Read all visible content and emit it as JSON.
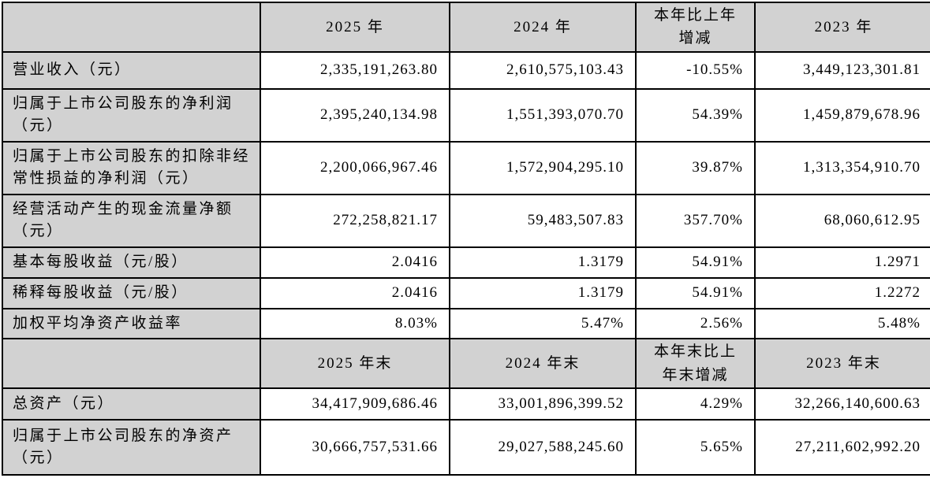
{
  "colors": {
    "header_bg": "#d2d2d2",
    "label_bg": "#d2d2d2",
    "value_bg": "#ffffff",
    "border": "#000000",
    "text": "#000000"
  },
  "table": {
    "section1": {
      "header": [
        "",
        "2025 年",
        "2024 年",
        "本年比上年增减",
        "2023 年"
      ],
      "rows": [
        {
          "label": "营业收入（元）",
          "v2025": "2,335,191,263.80",
          "v2024": "2,610,575,103.43",
          "change": "-10.55%",
          "v2023": "3,449,123,301.81"
        },
        {
          "label": "归属于上市公司股东的净利润（元）",
          "v2025": "2,395,240,134.98",
          "v2024": "1,551,393,070.70",
          "change": "54.39%",
          "v2023": "1,459,879,678.96"
        },
        {
          "label": "归属于上市公司股东的扣除非经常性损益的净利润（元）",
          "v2025": "2,200,066,967.46",
          "v2024": "1,572,904,295.10",
          "change": "39.87%",
          "v2023": "1,313,354,910.70"
        },
        {
          "label": "经营活动产生的现金流量净额（元）",
          "v2025": "272,258,821.17",
          "v2024": "59,483,507.83",
          "change": "357.70%",
          "v2023": "68,060,612.95"
        },
        {
          "label": "基本每股收益（元/股）",
          "v2025": "2.0416",
          "v2024": "1.3179",
          "change": "54.91%",
          "v2023": "1.2971"
        },
        {
          "label": "稀释每股收益（元/股）",
          "v2025": "2.0416",
          "v2024": "1.3179",
          "change": "54.91%",
          "v2023": "1.2272"
        },
        {
          "label": "加权平均净资产收益率",
          "v2025": "8.03%",
          "v2024": "5.47%",
          "change": "2.56%",
          "v2023": "5.48%"
        }
      ]
    },
    "section2": {
      "header": [
        "",
        "2025 年末",
        "2024 年末",
        "本年末比上年末增减",
        "2023 年末"
      ],
      "rows": [
        {
          "label": "总资产（元）",
          "v2025": "34,417,909,686.46",
          "v2024": "33,001,896,399.52",
          "change": "4.29%",
          "v2023": "32,266,140,600.63"
        },
        {
          "label": "归属于上市公司股东的净资产（元）",
          "v2025": "30,666,757,531.66",
          "v2024": "29,027,588,245.60",
          "change": "5.65%",
          "v2023": "27,211,602,992.20"
        }
      ]
    }
  }
}
